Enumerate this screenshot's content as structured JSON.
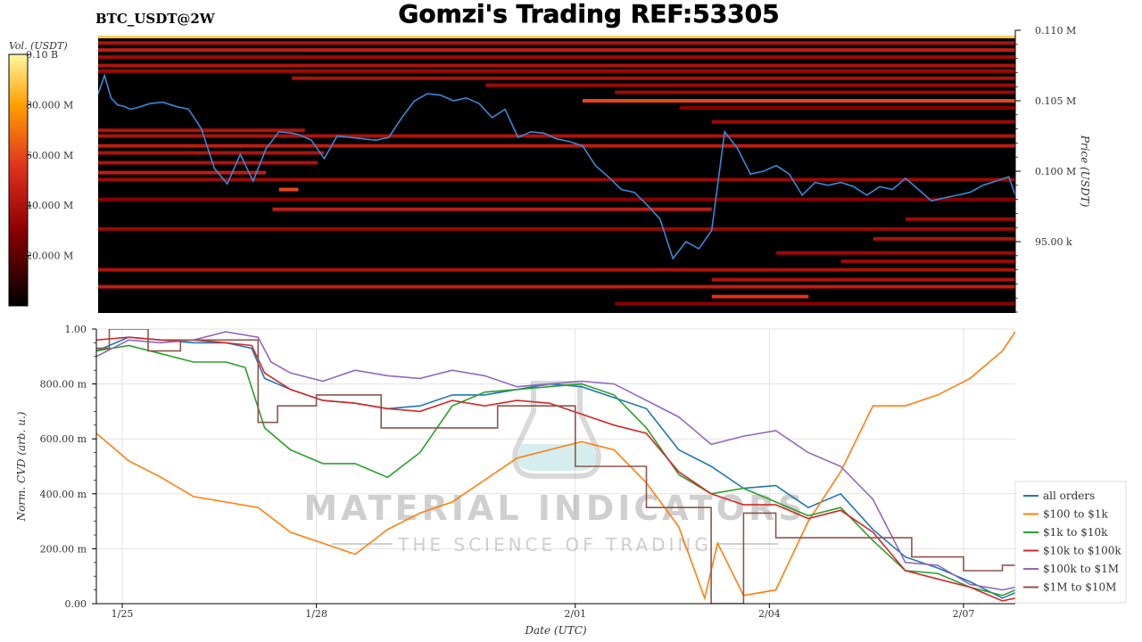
{
  "header": {
    "symbol": "BTC_USDT@2W",
    "title": "Gomzi's Trading REF:53305"
  },
  "watermark": {
    "line1": "MATERIAL INDICATORS",
    "line2": "THE SCIENCE OF TRADING"
  },
  "colors": {
    "price_line": "#3a88d6",
    "heatmap_bg": "#000000",
    "heatmap_low": "#5a0000",
    "heatmap_mid": "#c8201a",
    "heatmap_high": "#ffd400"
  },
  "chart_data": [
    {
      "type": "heatmap",
      "title": "Gomzi's Trading REF:53305",
      "colorbar": {
        "label": "Vol. (USDT)",
        "ticks": [
          "0.10 B",
          "80.000 M",
          "60.000 M",
          "40.000 M",
          "20.000 M"
        ],
        "tick_values": [
          100,
          80,
          60,
          40,
          20
        ],
        "range": [
          0,
          100
        ]
      },
      "y_axis": {
        "label": "Price (USDT)",
        "ticks": [
          "0.110 M",
          "0.105 M",
          "0.100 M",
          "95.00 k"
        ],
        "tick_values": [
          110000,
          105000,
          100000,
          95000
        ],
        "range": [
          90000,
          110200
        ]
      },
      "price_series": {
        "x_days": [
          0.0,
          0.1,
          0.2,
          0.3,
          0.4,
          0.5,
          0.6,
          0.8,
          1.0,
          1.2,
          1.4,
          1.6,
          1.8,
          2.0,
          2.2,
          2.4,
          2.6,
          2.8,
          3.0,
          3.1,
          3.3,
          3.5,
          3.7,
          3.9,
          4.1,
          4.3,
          4.5,
          4.7,
          4.9,
          5.1,
          5.3,
          5.5,
          5.7,
          5.9,
          6.1,
          6.3,
          6.5,
          6.7,
          6.9,
          7.1,
          7.3,
          7.5,
          7.7,
          7.9,
          8.1,
          8.3,
          8.5,
          8.7,
          8.9,
          9.1,
          9.3,
          9.5,
          9.7,
          9.9,
          10.1,
          10.3,
          10.5,
          10.7,
          10.9,
          11.1,
          11.3,
          11.5,
          11.7,
          11.9,
          12.1,
          12.3,
          12.5,
          12.7,
          12.9,
          13.1,
          13.3,
          13.5,
          13.7,
          13.9,
          14.1,
          14.2
        ],
        "values": [
          105500,
          106800,
          105200,
          104700,
          104600,
          104400,
          104500,
          104800,
          104900,
          104600,
          104400,
          103000,
          100200,
          99100,
          101200,
          99300,
          101600,
          102800,
          102700,
          102600,
          102200,
          100900,
          102500,
          102400,
          102300,
          102200,
          102400,
          103800,
          105000,
          105500,
          105400,
          105000,
          105200,
          104800,
          103800,
          104400,
          102400,
          102800,
          102700,
          102300,
          102100,
          101800,
          100400,
          99600,
          98700,
          98500,
          97600,
          96600,
          93800,
          95000,
          94500,
          95800,
          102800,
          101600,
          99800,
          100000,
          100400,
          99800,
          98300,
          99200,
          99000,
          99200,
          98900,
          98300,
          98900,
          98700,
          99500,
          98700,
          97900,
          98100,
          98300,
          98500,
          99000,
          99300,
          99600,
          98300
        ]
      },
      "bands": [
        {
          "price": 109900,
          "start": 0.0,
          "end": 14.2,
          "level": 45
        },
        {
          "price": 109600,
          "start": 0.0,
          "end": 14.2,
          "level": 45
        },
        {
          "price": 109100,
          "start": 0.0,
          "end": 14.2,
          "level": 40
        },
        {
          "price": 108600,
          "start": 0.0,
          "end": 14.2,
          "level": 45
        },
        {
          "price": 108100,
          "start": 0.0,
          "end": 14.2,
          "level": 35
        },
        {
          "price": 107500,
          "start": 0.0,
          "end": 14.2,
          "level": 40
        },
        {
          "price": 107100,
          "start": 0.0,
          "end": 14.2,
          "level": 35
        },
        {
          "price": 106600,
          "start": 3.0,
          "end": 14.2,
          "level": 40
        },
        {
          "price": 106100,
          "start": 6.0,
          "end": 14.2,
          "level": 35
        },
        {
          "price": 105600,
          "start": 8.0,
          "end": 14.2,
          "level": 35
        },
        {
          "price": 105000,
          "start": 7.5,
          "end": 14.2,
          "level": 60
        },
        {
          "price": 104500,
          "start": 9.0,
          "end": 14.2,
          "level": 30
        },
        {
          "price": 103500,
          "start": 9.5,
          "end": 14.2,
          "level": 35
        },
        {
          "price": 102900,
          "start": 0.0,
          "end": 3.2,
          "level": 40
        },
        {
          "price": 102500,
          "start": 0.0,
          "end": 14.2,
          "level": 40
        },
        {
          "price": 101800,
          "start": 0.0,
          "end": 14.2,
          "level": 45
        },
        {
          "price": 101300,
          "start": 0.0,
          "end": 3.5,
          "level": 40
        },
        {
          "price": 100600,
          "start": 0.0,
          "end": 3.4,
          "level": 40
        },
        {
          "price": 99900,
          "start": 0.0,
          "end": 2.6,
          "level": 45
        },
        {
          "price": 99400,
          "start": 0.0,
          "end": 14.2,
          "level": 35
        },
        {
          "price": 98700,
          "start": 2.8,
          "end": 3.1,
          "level": 60
        },
        {
          "price": 98000,
          "start": 0.0,
          "end": 14.2,
          "level": 30
        },
        {
          "price": 97300,
          "start": 2.7,
          "end": 9.5,
          "level": 45
        },
        {
          "price": 96600,
          "start": 12.5,
          "end": 14.2,
          "level": 35
        },
        {
          "price": 95900,
          "start": 0.0,
          "end": 14.2,
          "level": 35
        },
        {
          "price": 95200,
          "start": 12.0,
          "end": 14.2,
          "level": 40
        },
        {
          "price": 94200,
          "start": 10.5,
          "end": 14.2,
          "level": 35
        },
        {
          "price": 93600,
          "start": 11.5,
          "end": 14.2,
          "level": 35
        },
        {
          "price": 93000,
          "start": 0.0,
          "end": 14.2,
          "level": 40
        },
        {
          "price": 92300,
          "start": 9.5,
          "end": 14.2,
          "level": 40
        },
        {
          "price": 91800,
          "start": 0.0,
          "end": 14.2,
          "level": 45
        },
        {
          "price": 91100,
          "start": 9.5,
          "end": 11.0,
          "level": 55
        },
        {
          "price": 90600,
          "start": 8.0,
          "end": 14.2,
          "level": 30
        }
      ],
      "top_strip": {
        "price": 110100,
        "start": 0.0,
        "end": 14.2,
        "level": 90
      }
    },
    {
      "type": "line",
      "xlabel": "Date (UTC)",
      "ylabel": "Norm. CVD (arb. u.)",
      "x_ticks": [
        "1/25",
        "1/28",
        "2/01",
        "2/04",
        "2/07"
      ],
      "x_tick_days": [
        0.4,
        3.4,
        7.4,
        10.4,
        13.4
      ],
      "xlim": [
        0,
        14.2
      ],
      "y_ticks": [
        "0.00",
        "200.00 m",
        "400.00 m",
        "600.00 m",
        "800.00 m",
        "1.00"
      ],
      "y_tick_values": [
        0,
        0.2,
        0.4,
        0.6,
        0.8,
        1.0
      ],
      "ylim": [
        0,
        1.0
      ],
      "grid": true,
      "legend": "right",
      "series": [
        {
          "name": "all orders",
          "color": "#1f77b4",
          "x": [
            0,
            0.5,
            1,
            1.5,
            2,
            2.4,
            2.6,
            3,
            3.5,
            4,
            4.5,
            5,
            5.5,
            6,
            6.5,
            7,
            7.5,
            8,
            8.5,
            9,
            9.5,
            10,
            10.5,
            11,
            11.5,
            12,
            12.5,
            13,
            13.5,
            14,
            14.2
          ],
          "values": [
            0.92,
            0.97,
            0.96,
            0.95,
            0.95,
            0.93,
            0.82,
            0.78,
            0.74,
            0.73,
            0.71,
            0.72,
            0.76,
            0.76,
            0.78,
            0.8,
            0.79,
            0.75,
            0.71,
            0.56,
            0.5,
            0.42,
            0.43,
            0.35,
            0.4,
            0.27,
            0.17,
            0.13,
            0.08,
            0.02,
            0.04
          ]
        },
        {
          "name": "$100 to $1k",
          "color": "#ff7f0e",
          "x": [
            0,
            0.5,
            1,
            1.5,
            2,
            2.5,
            3,
            3.5,
            4,
            4.5,
            5,
            5.5,
            6,
            6.5,
            7,
            7.5,
            8,
            8.5,
            9,
            9.4,
            9.6,
            10,
            10.5,
            11,
            11.5,
            12,
            12.5,
            13,
            13.5,
            14,
            14.2
          ],
          "values": [
            0.62,
            0.52,
            0.46,
            0.39,
            0.37,
            0.35,
            0.26,
            0.22,
            0.18,
            0.27,
            0.33,
            0.37,
            0.45,
            0.53,
            0.56,
            0.59,
            0.56,
            0.44,
            0.28,
            0.02,
            0.22,
            0.03,
            0.05,
            0.3,
            0.48,
            0.72,
            0.72,
            0.76,
            0.82,
            0.92,
            0.99
          ]
        },
        {
          "name": "$1k to $10k",
          "color": "#2ca02c",
          "x": [
            0,
            0.5,
            1,
            1.5,
            2,
            2.3,
            2.6,
            3,
            3.5,
            4,
            4.5,
            5,
            5.5,
            6,
            6.5,
            7,
            7.5,
            8,
            8.5,
            9,
            9.5,
            10,
            10.5,
            11,
            11.5,
            12,
            12.5,
            13,
            13.5,
            14,
            14.2
          ],
          "values": [
            0.92,
            0.94,
            0.91,
            0.88,
            0.88,
            0.86,
            0.64,
            0.56,
            0.51,
            0.51,
            0.46,
            0.55,
            0.72,
            0.77,
            0.78,
            0.79,
            0.8,
            0.76,
            0.64,
            0.47,
            0.4,
            0.42,
            0.37,
            0.32,
            0.35,
            0.23,
            0.12,
            0.11,
            0.06,
            0.03,
            0.05
          ]
        },
        {
          "name": "$10k to $100k",
          "color": "#d62728",
          "x": [
            0,
            0.5,
            1,
            1.5,
            2,
            2.4,
            2.6,
            3,
            3.5,
            4,
            4.5,
            5,
            5.5,
            6,
            6.5,
            7,
            7.5,
            8,
            8.5,
            9,
            9.5,
            10,
            10.5,
            11,
            11.5,
            12,
            12.5,
            13,
            13.5,
            14,
            14.2
          ],
          "values": [
            0.96,
            0.97,
            0.96,
            0.96,
            0.95,
            0.94,
            0.84,
            0.78,
            0.74,
            0.73,
            0.71,
            0.7,
            0.74,
            0.72,
            0.74,
            0.73,
            0.69,
            0.65,
            0.62,
            0.48,
            0.4,
            0.36,
            0.36,
            0.31,
            0.34,
            0.26,
            0.12,
            0.09,
            0.06,
            0.01,
            0.02
          ]
        },
        {
          "name": "$100k to $1M",
          "color": "#9467bd",
          "x": [
            0,
            0.5,
            1,
            1.5,
            2,
            2.5,
            2.7,
            3,
            3.5,
            4,
            4.5,
            5,
            5.5,
            6,
            6.5,
            7,
            7.5,
            8,
            8.5,
            9,
            9.5,
            10,
            10.5,
            11,
            11.5,
            12,
            12.5,
            13,
            13.5,
            14,
            14.2
          ],
          "values": [
            0.9,
            0.96,
            0.95,
            0.96,
            0.99,
            0.97,
            0.88,
            0.84,
            0.81,
            0.85,
            0.83,
            0.82,
            0.85,
            0.83,
            0.79,
            0.8,
            0.81,
            0.8,
            0.74,
            0.68,
            0.58,
            0.61,
            0.63,
            0.55,
            0.5,
            0.38,
            0.15,
            0.14,
            0.07,
            0.05,
            0.06
          ]
        },
        {
          "name": "$1M to $10M",
          "color": "#8c564b",
          "x": [
            0,
            0.2,
            0.2,
            0.8,
            0.8,
            1.3,
            1.3,
            2.5,
            2.5,
            2.8,
            2.8,
            3.4,
            3.4,
            4.4,
            4.4,
            6.2,
            6.2,
            7.4,
            7.4,
            8.5,
            8.5,
            9.5,
            9.5,
            10.0,
            10.0,
            10.5,
            10.5,
            12.6,
            12.6,
            13.4,
            13.4,
            14.0,
            14.0,
            14.2
          ],
          "values": [
            0.93,
            0.93,
            1.0,
            1.0,
            0.92,
            0.92,
            0.96,
            0.96,
            0.66,
            0.66,
            0.72,
            0.72,
            0.76,
            0.76,
            0.64,
            0.64,
            0.72,
            0.72,
            0.5,
            0.5,
            0.35,
            0.35,
            0.0,
            0.0,
            0.33,
            0.33,
            0.24,
            0.24,
            0.17,
            0.17,
            0.12,
            0.12,
            0.14,
            0.14
          ]
        }
      ]
    }
  ]
}
